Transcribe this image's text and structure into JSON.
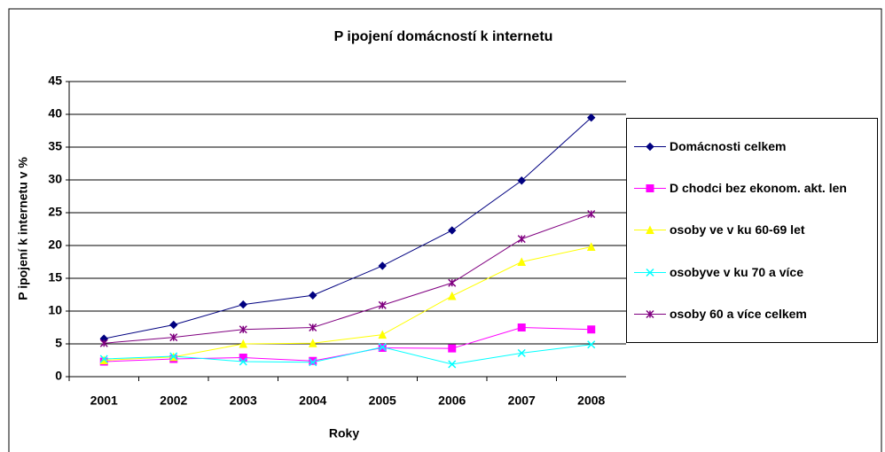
{
  "chart_data": {
    "type": "line",
    "title": "P  ipojení domácností k internetu",
    "x_label": "Roky",
    "y_label": "P  ipojení  k internetu v %",
    "categories": [
      "2001",
      "2002",
      "2003",
      "2004",
      "2005",
      "2006",
      "2007",
      "2008"
    ],
    "ylim": [
      0,
      45
    ],
    "yticks": [
      0,
      5,
      10,
      15,
      20,
      25,
      30,
      35,
      40,
      45
    ],
    "grid": true,
    "legend": "right",
    "series": [
      {
        "name": "Domácnosti celkem",
        "color": "#000080",
        "marker": "diamond",
        "values": [
          5.8,
          7.9,
          11.0,
          12.4,
          16.9,
          22.3,
          29.9,
          39.5
        ]
      },
      {
        "name": "D  chodci bez ekonom. akt.  len",
        "color": "#ff00ff",
        "marker": "square",
        "values": [
          2.3,
          2.7,
          2.9,
          2.4,
          4.4,
          4.3,
          7.5,
          7.2
        ]
      },
      {
        "name": "osoby ve v  ku 60-69 let",
        "color": "#ffff00",
        "marker": "triangle",
        "values": [
          2.5,
          3.0,
          5.0,
          5.1,
          6.4,
          12.3,
          17.5,
          19.8
        ]
      },
      {
        "name": "osobyve v  ku 70 a více",
        "color": "#00ffff",
        "marker": "x",
        "values": [
          2.7,
          3.1,
          2.3,
          2.2,
          4.5,
          1.9,
          3.6,
          4.9
        ]
      },
      {
        "name": "osoby 60 a více celkem",
        "color": "#800080",
        "marker": "star",
        "values": [
          5.1,
          6.0,
          7.2,
          7.5,
          10.9,
          14.3,
          21.0,
          24.8
        ]
      }
    ]
  }
}
